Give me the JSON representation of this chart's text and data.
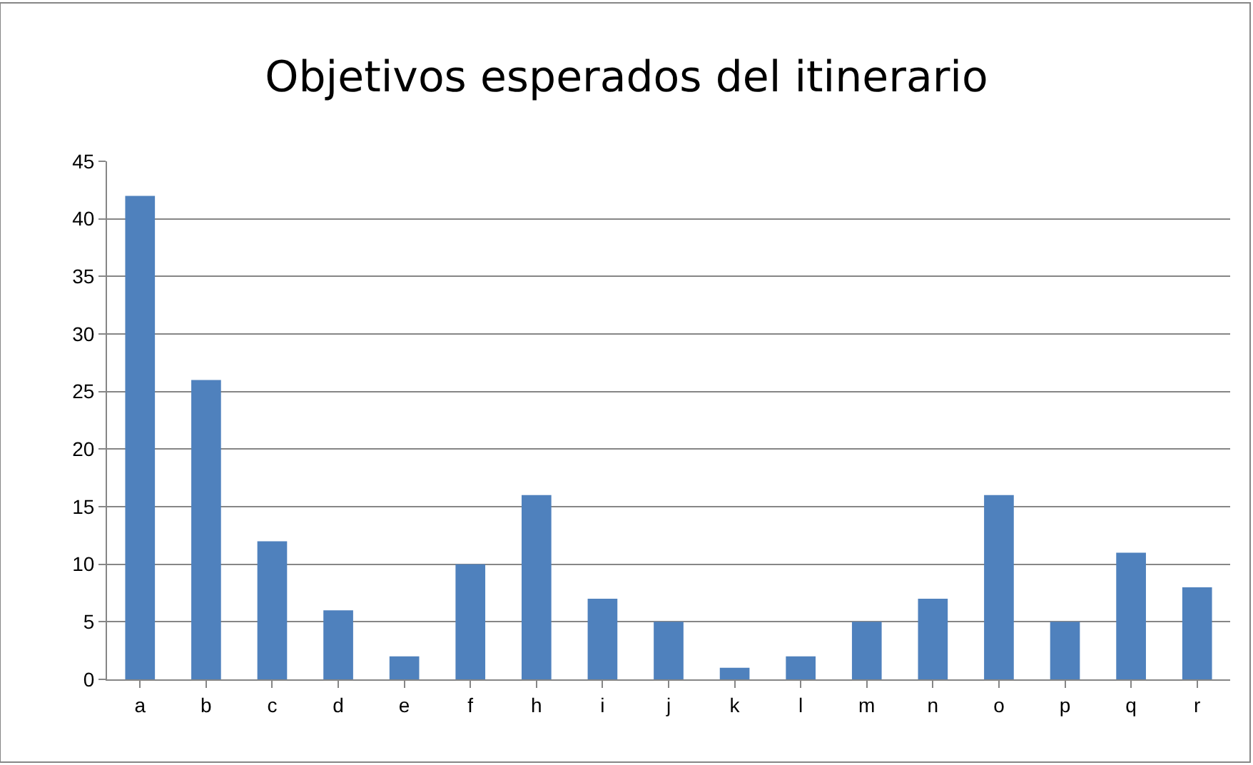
{
  "chart_data": {
    "type": "bar",
    "title": "Objetivos esperados del itinerario",
    "categories": [
      "a",
      "b",
      "c",
      "d",
      "e",
      "f",
      "h",
      "i",
      "j",
      "k",
      "l",
      "m",
      "n",
      "o",
      "p",
      "q",
      "r"
    ],
    "values": [
      42,
      26,
      12,
      6,
      2,
      10,
      16,
      7,
      5,
      1,
      2,
      5,
      7,
      16,
      5,
      11,
      8
    ],
    "color": "#4f81bd",
    "ylim": [
      0,
      45
    ],
    "yticks": [
      0,
      5,
      10,
      15,
      20,
      25,
      30,
      35,
      40,
      45
    ],
    "grid": "y",
    "legend": false
  }
}
